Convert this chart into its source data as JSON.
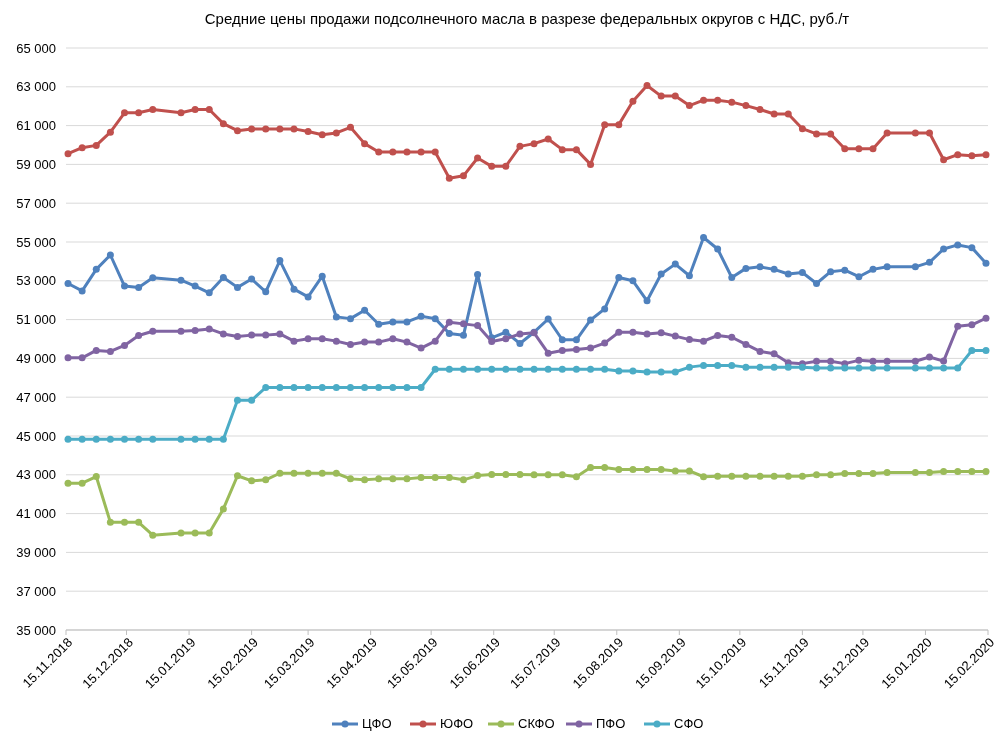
{
  "chart_data": {
    "type": "line",
    "title": "Средние цены продажи подсолнечного масла в разрезе федеральных округов с НДС, руб./т",
    "x": [
      "2018-11-16",
      "2018-11-23",
      "2018-11-30",
      "2018-12-07",
      "2018-12-14",
      "2018-12-21",
      "2018-12-28",
      "2019-01-11",
      "2019-01-18",
      "2019-01-25",
      "2019-02-01",
      "2019-02-08",
      "2019-02-15",
      "2019-02-22",
      "2019-03-01",
      "2019-03-08",
      "2019-03-15",
      "2019-03-22",
      "2019-03-29",
      "2019-04-05",
      "2019-04-12",
      "2019-04-19",
      "2019-04-26",
      "2019-05-03",
      "2019-05-10",
      "2019-05-17",
      "2019-05-24",
      "2019-05-31",
      "2019-06-07",
      "2019-06-14",
      "2019-06-21",
      "2019-06-28",
      "2019-07-05",
      "2019-07-12",
      "2019-07-19",
      "2019-07-26",
      "2019-08-02",
      "2019-08-09",
      "2019-08-16",
      "2019-08-23",
      "2019-08-30",
      "2019-09-06",
      "2019-09-13",
      "2019-09-20",
      "2019-09-27",
      "2019-10-04",
      "2019-10-11",
      "2019-10-18",
      "2019-10-25",
      "2019-11-01",
      "2019-11-08",
      "2019-11-15",
      "2019-11-22",
      "2019-11-29",
      "2019-12-06",
      "2019-12-13",
      "2019-12-20",
      "2019-12-27",
      "2020-01-10",
      "2020-01-17",
      "2020-01-24",
      "2020-01-31",
      "2020-02-07",
      "2020-02-14"
    ],
    "series": [
      {
        "name": "ЦФО",
        "color": "#4f81bd",
        "values": [
          52860,
          52480,
          53590,
          54330,
          52730,
          52660,
          53160,
          53030,
          52730,
          52380,
          53170,
          52660,
          53090,
          52430,
          54040,
          52570,
          52170,
          53240,
          51140,
          51050,
          51480,
          50760,
          50880,
          50880,
          51170,
          51050,
          50280,
          50190,
          53330,
          50060,
          50350,
          49770,
          50350,
          51030,
          49960,
          49960,
          50980,
          51550,
          53170,
          53000,
          51970,
          53350,
          53860,
          53260,
          55230,
          54640,
          53170,
          53640,
          53720,
          53590,
          53350,
          53430,
          52860,
          53470,
          53550,
          53210,
          53590,
          53720,
          53720,
          53950,
          54640,
          54850,
          54710,
          53900
        ]
      },
      {
        "name": "ЮФО",
        "color": "#c0504d",
        "values": [
          59550,
          59860,
          59980,
          60660,
          61660,
          61660,
          61830,
          61660,
          61830,
          61830,
          61100,
          60740,
          60830,
          60830,
          60830,
          60830,
          60700,
          60530,
          60620,
          60910,
          60070,
          59640,
          59640,
          59640,
          59640,
          59640,
          58290,
          58410,
          59330,
          58900,
          58900,
          59930,
          60070,
          60310,
          59760,
          59760,
          59000,
          61050,
          61050,
          62260,
          63070,
          62520,
          62520,
          62030,
          62310,
          62310,
          62210,
          62030,
          61830,
          61600,
          61600,
          60840,
          60570,
          60570,
          59810,
          59810,
          59810,
          60620,
          60620,
          60620,
          59240,
          59500,
          59450,
          59500
        ]
      },
      {
        "name": "СКФО",
        "color": "#9bbb59",
        "values": [
          42570,
          42570,
          42910,
          40550,
          40550,
          40550,
          39890,
          40000,
          40000,
          40000,
          41240,
          42950,
          42690,
          42740,
          43080,
          43080,
          43080,
          43080,
          43080,
          42790,
          42740,
          42790,
          42790,
          42790,
          42860,
          42860,
          42860,
          42740,
          42960,
          43010,
          43010,
          43010,
          43000,
          43000,
          43000,
          42900,
          43380,
          43380,
          43270,
          43270,
          43270,
          43270,
          43200,
          43200,
          42900,
          42930,
          42930,
          42930,
          42930,
          42930,
          42930,
          42930,
          43000,
          43000,
          43070,
          43070,
          43070,
          43120,
          43120,
          43120,
          43170,
          43170,
          43170,
          43170
        ]
      },
      {
        "name": "ПФО",
        "color": "#8064a2",
        "values": [
          49030,
          49030,
          49410,
          49360,
          49670,
          50180,
          50400,
          50400,
          50440,
          50520,
          50260,
          50130,
          50200,
          50200,
          50260,
          49890,
          50010,
          50010,
          49890,
          49720,
          49840,
          49840,
          50010,
          49840,
          49530,
          49890,
          50860,
          50780,
          50690,
          49870,
          50010,
          50260,
          50320,
          49270,
          49410,
          49460,
          49530,
          49790,
          50350,
          50350,
          50260,
          50320,
          50150,
          49970,
          49890,
          50180,
          50090,
          49720,
          49360,
          49240,
          48780,
          48730,
          48850,
          48850,
          48730,
          48900,
          48850,
          48850,
          48850,
          49070,
          48860,
          50660,
          50730,
          51070
        ]
      },
      {
        "name": "СФО",
        "color": "#4bacc6",
        "values": [
          44830,
          44830,
          44830,
          44830,
          44830,
          44830,
          44830,
          44830,
          44830,
          44830,
          44830,
          46840,
          46840,
          47500,
          47500,
          47500,
          47500,
          47500,
          47500,
          47500,
          47500,
          47500,
          47500,
          47500,
          47500,
          48440,
          48440,
          48440,
          48440,
          48440,
          48440,
          48440,
          48440,
          48440,
          48440,
          48440,
          48440,
          48440,
          48350,
          48350,
          48300,
          48300,
          48300,
          48550,
          48640,
          48640,
          48640,
          48550,
          48550,
          48550,
          48550,
          48550,
          48500,
          48500,
          48500,
          48500,
          48500,
          48500,
          48500,
          48500,
          48500,
          48500,
          49410,
          49410
        ]
      }
    ],
    "xlim": [
      "2018-11-15",
      "2020-02-15"
    ],
    "xticks": [
      {
        "value": "2018-11-15",
        "label": "15.11.2018"
      },
      {
        "value": "2018-12-15",
        "label": "15.12.2018"
      },
      {
        "value": "2019-01-15",
        "label": "15.01.2019"
      },
      {
        "value": "2019-02-15",
        "label": "15.02.2019"
      },
      {
        "value": "2019-03-15",
        "label": "15.03.2019"
      },
      {
        "value": "2019-04-15",
        "label": "15.04.2019"
      },
      {
        "value": "2019-05-15",
        "label": "15.05.2019"
      },
      {
        "value": "2019-06-15",
        "label": "15.06.2019"
      },
      {
        "value": "2019-07-15",
        "label": "15.07.2019"
      },
      {
        "value": "2019-08-15",
        "label": "15.08.2019"
      },
      {
        "value": "2019-09-15",
        "label": "15.09.2019"
      },
      {
        "value": "2019-10-15",
        "label": "15.10.2019"
      },
      {
        "value": "2019-11-15",
        "label": "15.11.2019"
      },
      {
        "value": "2019-12-15",
        "label": "15.12.2019"
      },
      {
        "value": "2020-01-15",
        "label": "15.01.2020"
      },
      {
        "value": "2020-02-15",
        "label": "15.02.2020"
      }
    ],
    "ylim": [
      35000,
      65000
    ],
    "yticks": [
      {
        "value": 35000,
        "label": "35 000"
      },
      {
        "value": 37000,
        "label": "37 000"
      },
      {
        "value": 39000,
        "label": "39 000"
      },
      {
        "value": 41000,
        "label": "41 000"
      },
      {
        "value": 43000,
        "label": "43 000"
      },
      {
        "value": 45000,
        "label": "45 000"
      },
      {
        "value": 47000,
        "label": "47 000"
      },
      {
        "value": 49000,
        "label": "49 000"
      },
      {
        "value": 51000,
        "label": "51 000"
      },
      {
        "value": 53000,
        "label": "53 000"
      },
      {
        "value": 55000,
        "label": "55 000"
      },
      {
        "value": 57000,
        "label": "57 000"
      },
      {
        "value": 59000,
        "label": "59 000"
      },
      {
        "value": 61000,
        "label": "61 000"
      },
      {
        "value": 63000,
        "label": "63 000"
      },
      {
        "value": 65000,
        "label": "65 000"
      }
    ],
    "grid": "y",
    "legend": "bottom",
    "marker": "circle",
    "line_style": "solid"
  }
}
